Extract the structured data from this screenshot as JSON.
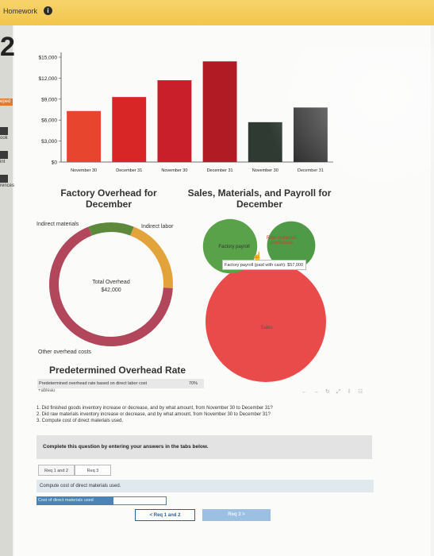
{
  "header": {
    "title": "Homework",
    "info_icon": "i"
  },
  "left_nav": {
    "question_number": "2",
    "tag": "eped",
    "items": [
      {
        "label": "ook",
        "icon": "book-icon"
      },
      {
        "label": "int",
        "icon": "print-icon"
      },
      {
        "label": "rences",
        "icon": "references-icon"
      }
    ]
  },
  "chart_data": [
    {
      "type": "bar",
      "categories": [
        "November 30",
        "December 31",
        "November 30",
        "December 31",
        "November 30",
        "December 31"
      ],
      "values": [
        7300,
        9300,
        11700,
        14400,
        5700,
        7800
      ],
      "colors": [
        "#e8452e",
        "#d82626",
        "#c81f2a",
        "#b01b24",
        "#2f3a33",
        "#2b2b2b"
      ],
      "ylim": [
        0,
        15000
      ],
      "yticks": [
        "$15,000",
        "$12,000",
        "$9,000",
        "$6,000",
        "$3,000",
        "$0"
      ],
      "grid": false
    },
    {
      "type": "pie",
      "title": "Factory Overhead for December",
      "labels": [
        "Indirect materials",
        "Indirect labor",
        "Other overhead costs"
      ],
      "values": [
        0.12,
        0.2,
        0.68
      ],
      "colors": [
        "#5d8a3a",
        "#e3a33b",
        "#b2475c"
      ],
      "center_label": "Total Overhead",
      "center_value": "$42,000"
    },
    {
      "type": "scatter",
      "title": "Sales, Materials, and Payroll for December",
      "bubbles": [
        {
          "label": "Factory payroll",
          "color": "#5aa24a",
          "size": 0.45
        },
        {
          "label": "Raw materials purchases",
          "color": "#4f9a47",
          "size": 0.4
        },
        {
          "label": "Sales",
          "color": "#e94b4b",
          "size": 1.0
        }
      ],
      "tooltip": "Factory payroll (paid with cash): $57,000"
    }
  ],
  "predetermined": {
    "title": "Predetermined Overhead Rate",
    "row_label": "Predetermined overhead rate based on direct labor cost",
    "row_value": "70%",
    "brand": "+ableau"
  },
  "toolbar": "← → ↻ ⤢ ⇩ ☷",
  "questions": [
    "1. Did finished goods inventory increase or decrease, and by what amount, from November 30 to December 31?",
    "2. Did raw materials inventory increase or decrease, and by what amount, from November 30 to December 31?",
    "3. Compute cost of direct materials used."
  ],
  "instructions": "Complete this question by entering your answers in the tabs below.",
  "tabs": [
    "Req 1 and 2",
    "Req 3"
  ],
  "compute_label": "Compute cost of direct materials used.",
  "cdm_label": "Cost of direct materials used",
  "cdm_value": "",
  "buttons": {
    "prev": "< Req 1 and 2",
    "next": "Req 3 >"
  }
}
